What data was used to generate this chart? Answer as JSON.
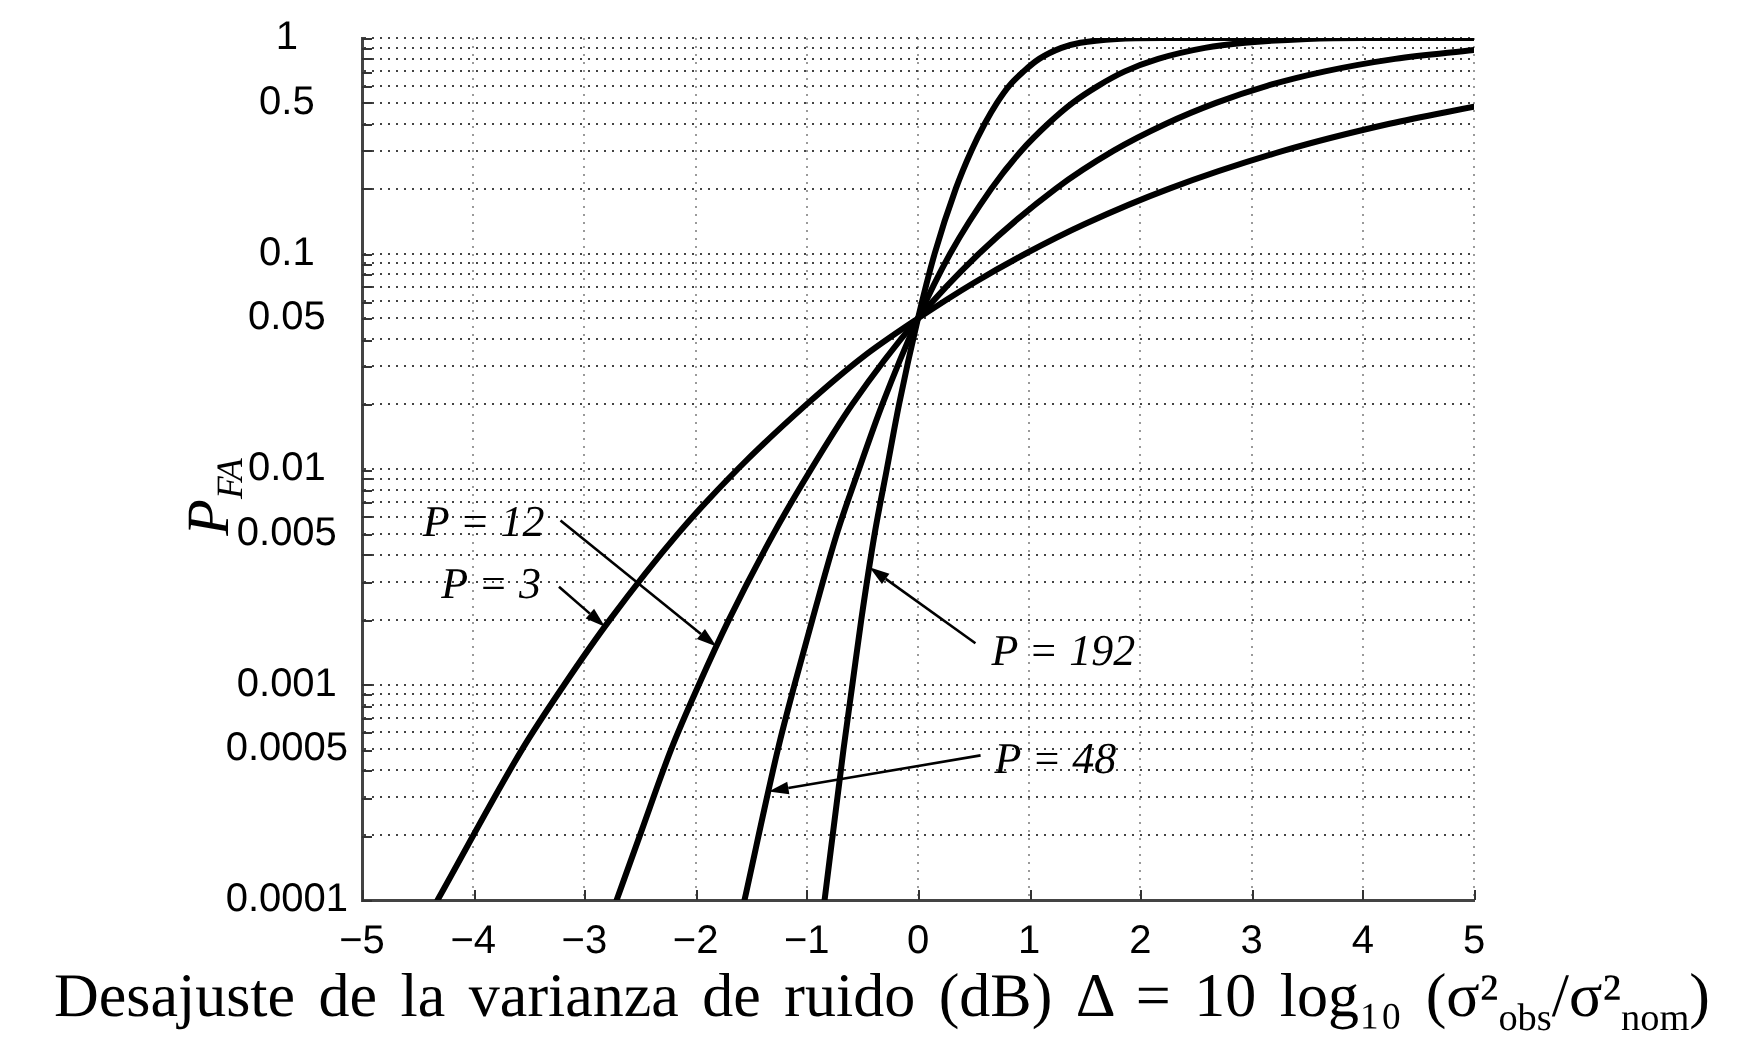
{
  "chart_data": {
    "type": "line",
    "xlabel": "Desajuste de la varianza de ruido (dB) Δ = 10 log₁₀ (σ²$_{obs}$/σ²$_{nom}$)",
    "ylabel": "P$_{FA}$",
    "log": "y",
    "grid": true,
    "marker": "none",
    "line_style": "solid",
    "xlim": [
      -5,
      5
    ],
    "xticks": [
      {
        "value": -5,
        "label": "−5"
      },
      {
        "value": -4,
        "label": "−4"
      },
      {
        "value": -3,
        "label": "−3"
      },
      {
        "value": -2,
        "label": "−2"
      },
      {
        "value": -1,
        "label": "−1"
      },
      0,
      1,
      2,
      3,
      4,
      5
    ],
    "ylim": [
      0.0001,
      1
    ],
    "yticks": [
      0.0001,
      {
        "value": 0.0002,
        "label": null
      },
      {
        "value": 0.0003,
        "label": null
      },
      {
        "value": 0.0004,
        "label": null
      },
      0.0005,
      {
        "value": 0.0006,
        "label": null
      },
      {
        "value": 0.0007,
        "label": null
      },
      {
        "value": 0.0008,
        "label": null
      },
      {
        "value": 0.0009,
        "label": null
      },
      0.001,
      {
        "value": 0.002,
        "label": null
      },
      {
        "value": 0.003,
        "label": null
      },
      {
        "value": 0.004,
        "label": null
      },
      0.005,
      {
        "value": 0.006,
        "label": null
      },
      {
        "value": 0.007,
        "label": null
      },
      {
        "value": 0.008,
        "label": null
      },
      {
        "value": 0.009,
        "label": null
      },
      0.01,
      {
        "value": 0.02,
        "label": null
      },
      {
        "value": 0.03,
        "label": null
      },
      {
        "value": 0.04,
        "label": null
      },
      0.05,
      {
        "value": 0.06,
        "label": null
      },
      {
        "value": 0.07,
        "label": null
      },
      {
        "value": 0.08,
        "label": null
      },
      {
        "value": 0.09,
        "label": null
      },
      0.1,
      {
        "value": 0.2,
        "label": null
      },
      {
        "value": 0.3,
        "label": null
      },
      {
        "value": 0.4,
        "label": null
      },
      0.5,
      {
        "value": 0.6,
        "label": null
      },
      {
        "value": 0.7,
        "label": null
      },
      {
        "value": 0.8,
        "label": null
      },
      {
        "value": 0.9,
        "label": null
      },
      1
    ],
    "series": [
      {
        "name": "P = 3",
        "color": "#000000",
        "x": [
          -4.32,
          -3.56,
          -3.18,
          -2.77,
          -2.16,
          -1.62,
          -1.0,
          -0.5,
          0,
          0.5,
          0.97,
          1.5,
          2.26,
          3.29,
          4.24,
          5
        ],
        "values": [
          0.0001,
          0.0005,
          0.001,
          0.002,
          0.005,
          0.01,
          0.02,
          0.033,
          0.05,
          0.073,
          0.1,
          0.137,
          0.2,
          0.3,
          0.4,
          0.48
        ]
      },
      {
        "name": "P = 12",
        "color": "#000000",
        "x": [
          -2.71,
          -2.5,
          -2.22,
          -1.97,
          -1.7,
          -1.3,
          -0.96,
          -0.59,
          0,
          0.55,
          1.24,
          1.76,
          2.23,
          2.68,
          3.14,
          3.66,
          4.29,
          5
        ],
        "values": [
          0.0001,
          0.0002,
          0.0005,
          0.001,
          0.002,
          0.005,
          0.01,
          0.02,
          0.05,
          0.1,
          0.2,
          0.3,
          0.4,
          0.5,
          0.6,
          0.7,
          0.8,
          0.88
        ]
      },
      {
        "name": "P = 48",
        "color": "#000000",
        "x": [
          -1.56,
          -1.26,
          -1.11,
          -0.95,
          -0.73,
          -0.53,
          -0.32,
          0,
          0.29,
          0.66,
          0.93,
          1.17,
          1.39,
          1.62,
          1.86,
          2.16,
          2.58,
          2.94,
          3.5,
          4,
          5
        ],
        "values": [
          0.0001,
          0.0005,
          0.001,
          0.002,
          0.005,
          0.01,
          0.02,
          0.05,
          0.1,
          0.2,
          0.3,
          0.4,
          0.5,
          0.6,
          0.7,
          0.8,
          0.9,
          0.95,
          0.99,
          1,
          1
        ]
      },
      {
        "name": "P = 192",
        "color": "#000000",
        "x": [
          -0.84,
          -0.67,
          -0.59,
          -0.51,
          -0.39,
          -0.28,
          -0.17,
          0,
          0.15,
          0.34,
          0.48,
          0.6,
          0.71,
          0.82,
          0.95,
          1.09,
          1.29,
          1.46,
          1.79,
          2.2,
          5
        ],
        "values": [
          0.0001,
          0.0005,
          0.001,
          0.002,
          0.005,
          0.01,
          0.02,
          0.05,
          0.1,
          0.2,
          0.3,
          0.4,
          0.5,
          0.6,
          0.7,
          0.8,
          0.9,
          0.95,
          0.99,
          1,
          1
        ]
      }
    ]
  }
}
